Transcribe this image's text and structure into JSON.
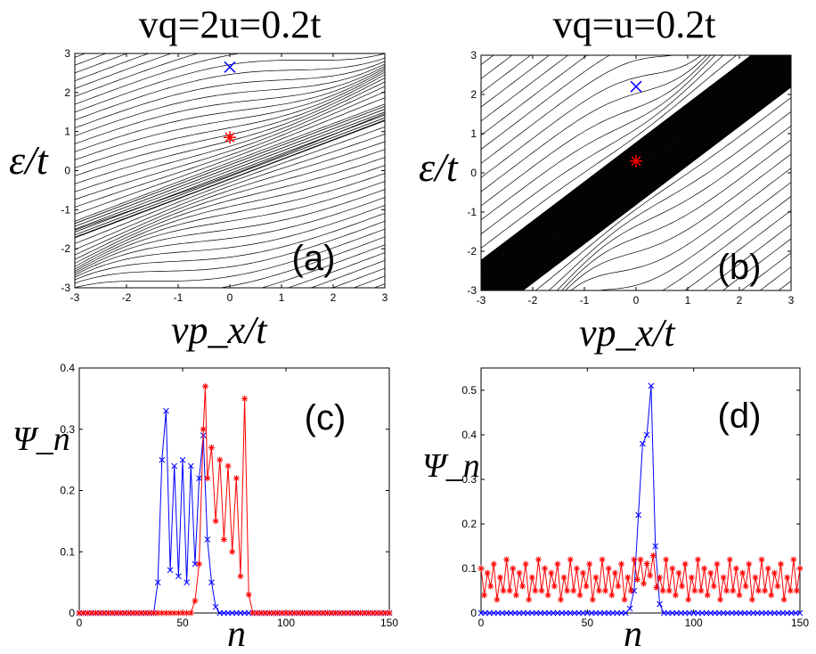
{
  "chart_data": [
    {
      "id": "a",
      "type": "line",
      "title": "vq=2u=0.2t",
      "panel_label": "(a)",
      "xlabel": "vp_x/t",
      "ylabel": "ε/t",
      "xlim": [
        -3,
        3
      ],
      "ylim": [
        -3,
        3
      ],
      "xticks": [
        -3,
        -2,
        -1,
        0,
        1,
        2,
        3
      ],
      "yticks": [
        -3,
        -2,
        -1,
        0,
        1,
        2,
        3
      ],
      "grid": false,
      "series": [
        {
          "name": "energy bands",
          "color": "#000000",
          "description": "dense family of band lines with a narrow bunched band along the central diagonal"
        }
      ],
      "markers": [
        {
          "name": "blue cross",
          "symbol": "x",
          "x": 0,
          "y": 2.65,
          "color": "#0000ff"
        },
        {
          "name": "red star",
          "symbol": "*",
          "x": 0,
          "y": 0.85,
          "color": "#ff0000"
        }
      ]
    },
    {
      "id": "b",
      "type": "line",
      "title": "vq=u=0.2t",
      "panel_label": "(b)",
      "xlabel": "vp_x/t",
      "ylabel": "ε/t",
      "xlim": [
        -3,
        3
      ],
      "ylim": [
        -3,
        3
      ],
      "xticks": [
        -3,
        -2,
        -1,
        0,
        1,
        2,
        3
      ],
      "yticks": [
        -3,
        -2,
        -1,
        0,
        1,
        2,
        3
      ],
      "grid": false,
      "series": [
        {
          "name": "energy bands",
          "color": "#000000",
          "description": "band lines with a wide dense black band along the diagonal"
        }
      ],
      "markers": [
        {
          "name": "blue cross",
          "symbol": "x",
          "x": 0,
          "y": 2.2,
          "color": "#0000ff"
        },
        {
          "name": "red star",
          "symbol": "*",
          "x": 0,
          "y": 0.3,
          "color": "#ff0000"
        }
      ]
    },
    {
      "id": "c",
      "type": "line",
      "panel_label": "(c)",
      "xlabel": "n",
      "ylabel": "Ψ_n",
      "xlim": [
        0,
        150
      ],
      "ylim": [
        0,
        0.4
      ],
      "xticks": [
        0,
        50,
        100,
        150
      ],
      "yticks": [
        0,
        0.1,
        0.2,
        0.3,
        0.4
      ],
      "grid": false,
      "series": [
        {
          "name": "blue state",
          "color": "#0000ff",
          "marker": "x",
          "x": [
            38,
            40,
            42,
            44,
            46,
            48,
            50,
            52,
            54,
            56,
            58,
            60,
            62,
            64,
            66
          ],
          "values": [
            0.05,
            0.25,
            0.33,
            0.07,
            0.24,
            0.06,
            0.25,
            0.05,
            0.24,
            0.08,
            0.22,
            0.29,
            0.12,
            0.05,
            0.01
          ]
        },
        {
          "name": "red state",
          "color": "#ff0000",
          "marker": "*",
          "x": [
            56,
            58,
            60,
            61,
            62,
            64,
            66,
            68,
            70,
            72,
            74,
            76,
            78,
            80,
            82
          ],
          "values": [
            0.02,
            0.08,
            0.3,
            0.37,
            0.22,
            0.27,
            0.15,
            0.25,
            0.12,
            0.24,
            0.1,
            0.22,
            0.06,
            0.35,
            0.03
          ]
        }
      ]
    },
    {
      "id": "d",
      "type": "line",
      "panel_label": "(d)",
      "xlabel": "n",
      "ylabel": "Ψ_n",
      "xlim": [
        0,
        150
      ],
      "ylim": [
        0,
        0.55
      ],
      "xticks": [
        0,
        50,
        100,
        150
      ],
      "yticks": [
        0,
        0.1,
        0.2,
        0.3,
        0.4,
        0.5
      ],
      "grid": false,
      "series": [
        {
          "name": "blue state",
          "color": "#0000ff",
          "marker": "x",
          "x": [
            70,
            72,
            74,
            76,
            78,
            80,
            82,
            84
          ],
          "values": [
            0.01,
            0.05,
            0.22,
            0.38,
            0.4,
            0.51,
            0.15,
            0.02
          ]
        },
        {
          "name": "red state",
          "color": "#ff0000",
          "marker": "*",
          "description": "oscillating between about 0.03 and 0.12 across the whole lattice, peak near n=78",
          "pattern": [
            0.1,
            0.04,
            0.09,
            0.06,
            0.11,
            0.03,
            0.08,
            0.05,
            0.12,
            0.05
          ]
        }
      ]
    }
  ]
}
